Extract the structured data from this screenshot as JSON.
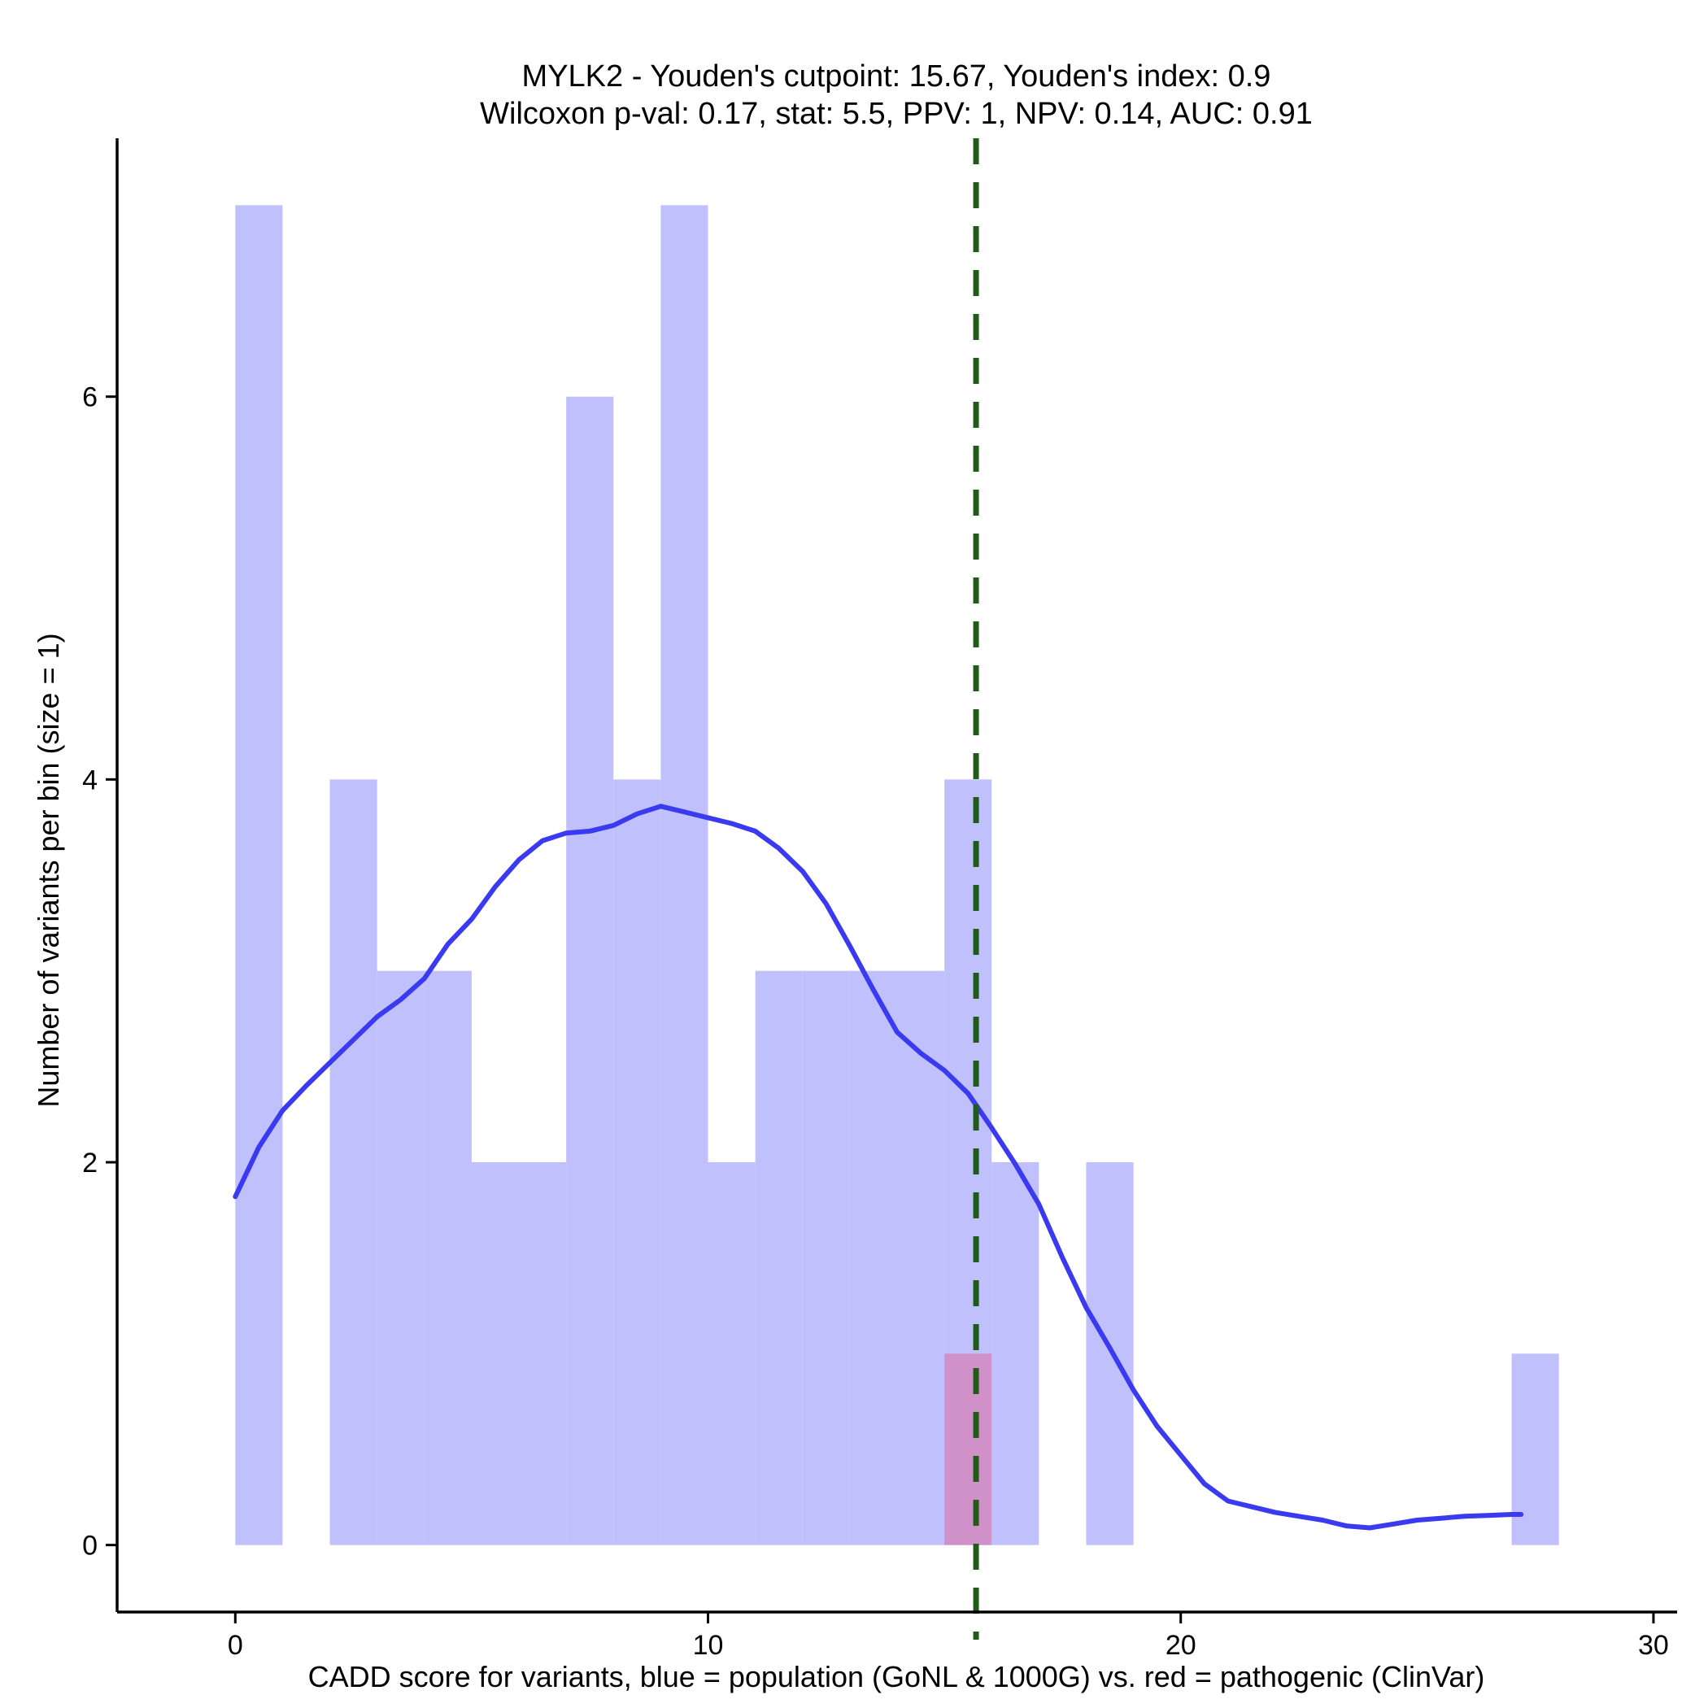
{
  "chart_data": {
    "type": "histogram",
    "title_lines": [
      "MYLK2 - Youden's cutpoint: 15.67, Youden's index: 0.9",
      "Wilcoxon p-val: 0.17, stat: 5.5, PPV: 1, NPV: 0.14, AUC: 0.91"
    ],
    "xlabel": "CADD score for variants, blue = population (GoNL & 1000G) vs. red = pathogenic (ClinVar)",
    "ylabel": "Number of variants per bin (size = 1)",
    "xlim": [
      -2.5,
      30.5
    ],
    "ylim": [
      -0.35,
      7.35
    ],
    "x_ticks": [
      0,
      10,
      20,
      30
    ],
    "y_ticks": [
      0,
      2,
      4,
      6
    ],
    "bin_width": 1,
    "series": [
      {
        "name": "population (GoNL & 1000G)",
        "color": "#c0c0fc",
        "bins": [
          {
            "start": 0,
            "count": 7
          },
          {
            "start": 2,
            "count": 4
          },
          {
            "start": 3,
            "count": 3
          },
          {
            "start": 4,
            "count": 3
          },
          {
            "start": 5,
            "count": 2
          },
          {
            "start": 6,
            "count": 2
          },
          {
            "start": 7,
            "count": 6
          },
          {
            "start": 8,
            "count": 4
          },
          {
            "start": 9,
            "count": 7
          },
          {
            "start": 10,
            "count": 2
          },
          {
            "start": 11,
            "count": 3
          },
          {
            "start": 12,
            "count": 3
          },
          {
            "start": 13,
            "count": 3
          },
          {
            "start": 14,
            "count": 3
          },
          {
            "start": 15,
            "count": 4
          },
          {
            "start": 16,
            "count": 2
          },
          {
            "start": 18,
            "count": 2
          },
          {
            "start": 27,
            "count": 1
          }
        ]
      },
      {
        "name": "pathogenic (ClinVar)",
        "color": "#d090c8",
        "bins": [
          {
            "start": 15,
            "count": 1
          }
        ]
      }
    ],
    "density_curve": {
      "name": "population density (scaled)",
      "color": "#3a3af0",
      "x": [
        0,
        0.5,
        1,
        1.5,
        2,
        2.5,
        3,
        3.5,
        4,
        4.5,
        5,
        5.5,
        6,
        6.5,
        7,
        7.5,
        8,
        8.5,
        9,
        9.5,
        10,
        10.5,
        11,
        11.5,
        12,
        12.5,
        13,
        13.5,
        14,
        14.5,
        15,
        15.5,
        16,
        16.5,
        17,
        17.5,
        18,
        18.5,
        19,
        19.5,
        20,
        20.5,
        21,
        21.5,
        22,
        22.5,
        23,
        23.5,
        24,
        24.5,
        25,
        25.5,
        26,
        26.5,
        27,
        27.2
      ],
      "y": [
        1.82,
        2.08,
        2.27,
        2.4,
        2.52,
        2.64,
        2.76,
        2.85,
        2.96,
        3.14,
        3.27,
        3.44,
        3.58,
        3.68,
        3.72,
        3.73,
        3.76,
        3.82,
        3.86,
        3.83,
        3.8,
        3.77,
        3.73,
        3.64,
        3.52,
        3.35,
        3.13,
        2.9,
        2.68,
        2.57,
        2.48,
        2.36,
        2.18,
        1.99,
        1.78,
        1.5,
        1.24,
        1.03,
        0.81,
        0.62,
        0.47,
        0.32,
        0.23,
        0.2,
        0.17,
        0.15,
        0.13,
        0.1,
        0.09,
        0.11,
        0.13,
        0.14,
        0.15,
        0.155,
        0.16,
        0.16
      ]
    },
    "cutpoint": {
      "x": 15.67,
      "color": "#1e5c18",
      "style": "dashed"
    }
  }
}
